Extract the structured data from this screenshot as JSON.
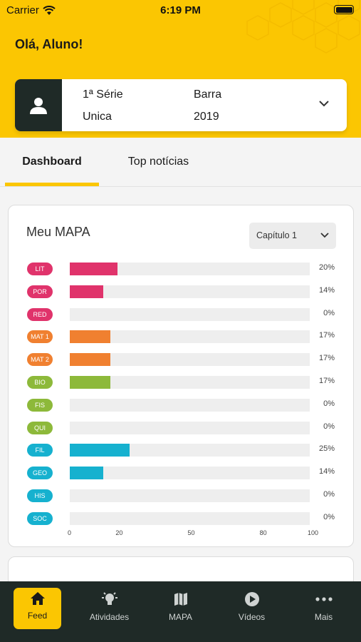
{
  "status_bar": {
    "carrier": "Carrier",
    "time": "6:19 PM"
  },
  "greeting": "Olá, Aluno!",
  "class_card": {
    "grade": "1ª Série",
    "unit": "Barra",
    "shift": "Unica",
    "year": "2019"
  },
  "tabs": [
    {
      "label": "Dashboard",
      "active": true
    },
    {
      "label": "Top notícias",
      "active": false
    }
  ],
  "mapa": {
    "title": "Meu MAPA",
    "chapter_select": "Capítulo 1",
    "chart_data": {
      "type": "bar",
      "orientation": "horizontal",
      "title": "Meu MAPA",
      "categories": [
        "LIT",
        "POR",
        "RED",
        "MAT 1",
        "MAT 2",
        "BIO",
        "FIS",
        "QUI",
        "FIL",
        "GEO",
        "HIS",
        "SOC"
      ],
      "values": [
        20,
        14,
        0,
        17,
        17,
        17,
        0,
        0,
        25,
        14,
        0,
        0
      ],
      "value_labels": [
        "20%",
        "14%",
        "0%",
        "17%",
        "17%",
        "17%",
        "0%",
        "0%",
        "25%",
        "14%",
        "0%",
        "0%"
      ],
      "category_colors": [
        "#E0336B",
        "#E0336B",
        "#E0336B",
        "#F08030",
        "#F08030",
        "#8DB93A",
        "#8DB93A",
        "#8DB93A",
        "#16B1CF",
        "#16B1CF",
        "#16B1CF",
        "#16B1CF"
      ],
      "xlim": [
        0,
        100
      ],
      "xticks": [
        0,
        20,
        50,
        80,
        100
      ],
      "xtick_labels": [
        "0",
        "20",
        "50",
        "80",
        "100"
      ]
    }
  },
  "bottom_nav": [
    {
      "label": "Feed",
      "icon": "home-icon",
      "active": true
    },
    {
      "label": "Atividades",
      "icon": "lightbulb-icon",
      "active": false
    },
    {
      "label": "MAPA",
      "icon": "map-icon",
      "active": false
    },
    {
      "label": "Vídeos",
      "icon": "play-icon",
      "active": false
    },
    {
      "label": "Mais",
      "icon": "more-icon",
      "active": false
    }
  ],
  "colors": {
    "accent": "#FBC602",
    "dark": "#1F2A27"
  }
}
